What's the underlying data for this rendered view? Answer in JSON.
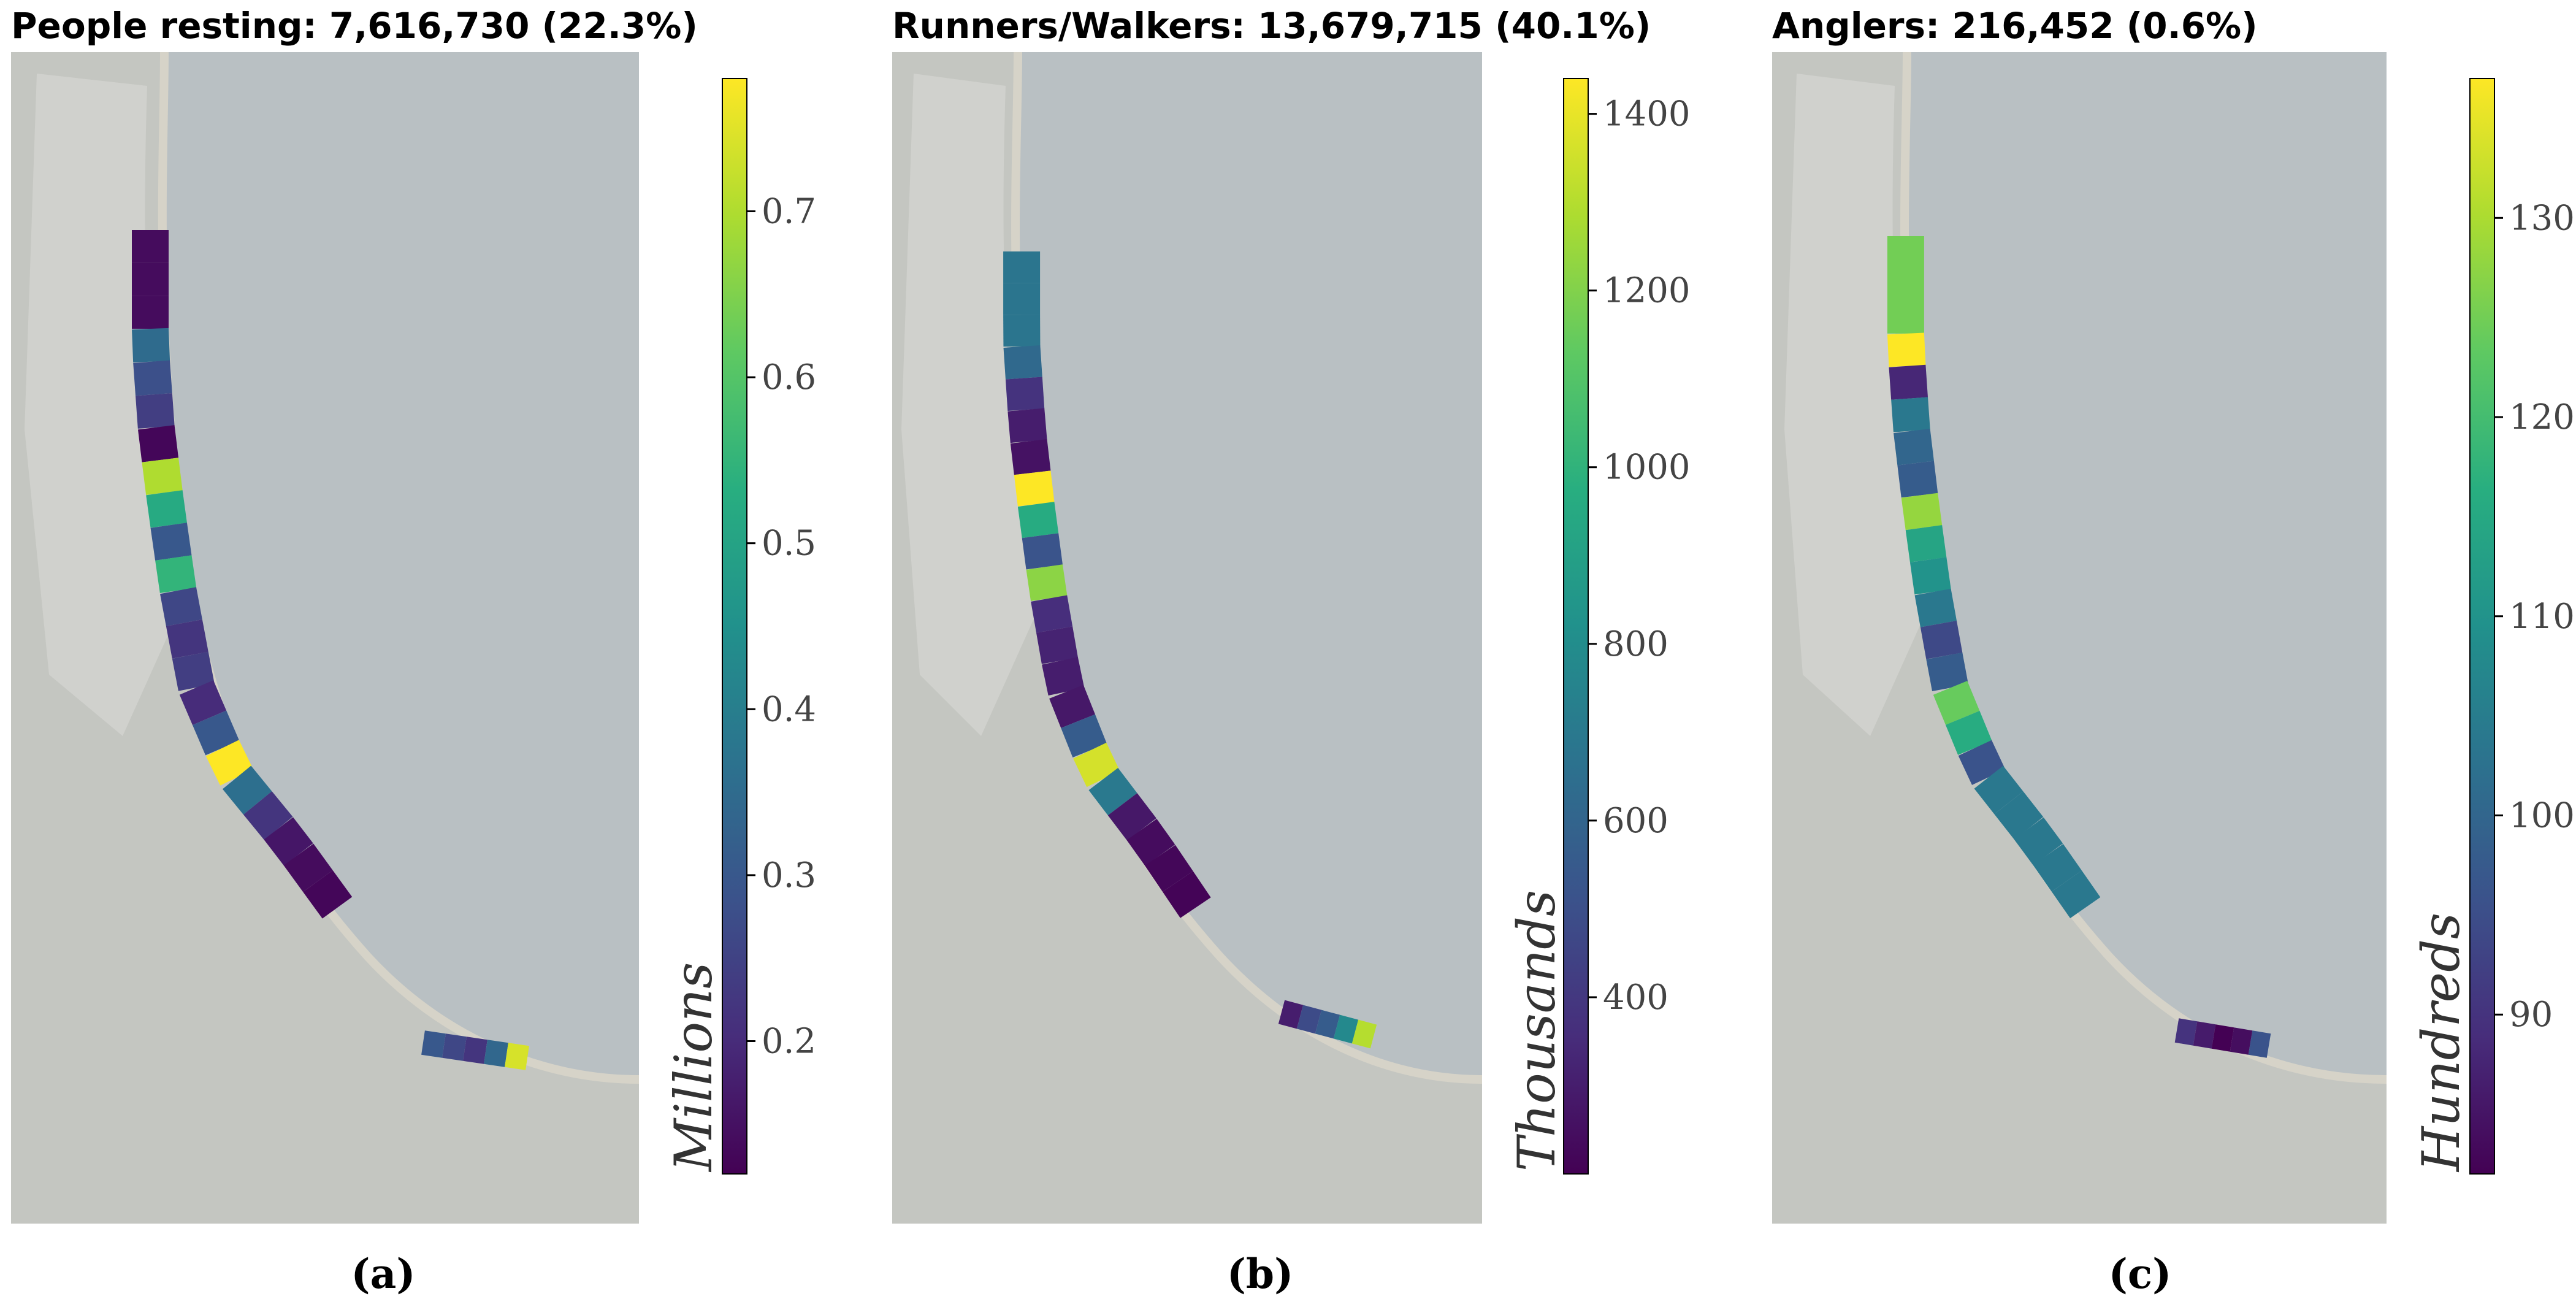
{
  "colormap": "viridis",
  "colors": {
    "water": "#b9c0c3",
    "land": "#c4c6c1",
    "urban": "#d3d3cf",
    "sand": "#d6d3c8",
    "frame": "#000000"
  },
  "panels": [
    {
      "id": "a",
      "title": "People resting: 7,616,730 (22.3%)",
      "subtitle": "(a)",
      "unit_label": "Millions",
      "colorbar": {
        "min": 0.12,
        "max": 0.78,
        "ticks": [
          0.2,
          0.3,
          0.4,
          0.5,
          0.6,
          0.7
        ]
      },
      "segments": [
        0.14,
        0.14,
        0.14,
        0.35,
        0.28,
        0.24,
        0.13,
        0.7,
        0.52,
        0.3,
        0.55,
        0.26,
        0.22,
        0.24,
        0.2,
        0.3,
        0.78,
        0.36,
        0.22,
        0.16,
        0.14,
        0.13
      ],
      "south_segments": [
        0.3,
        0.26,
        0.22,
        0.34,
        0.74
      ]
    },
    {
      "id": "b",
      "title": "Runners/Walkers: 13,679,715 (40.1%)",
      "subtitle": "(b)",
      "unit_label": "Thousands",
      "colorbar": {
        "min": 200,
        "max": 1440,
        "ticks": [
          400,
          600,
          800,
          1000,
          1200,
          1400
        ]
      },
      "segments": [
        680,
        680,
        680,
        620,
        380,
        300,
        260,
        1440,
        960,
        520,
        1220,
        360,
        320,
        300,
        280,
        560,
        1360,
        700,
        280,
        240,
        220,
        210
      ],
      "south_segments": [
        300,
        480,
        560,
        780,
        1300
      ]
    },
    {
      "id": "c",
      "title": "Anglers: 216,452 (0.6%)",
      "subtitle": "(c)",
      "unit_label": "Hundreds",
      "colorbar": {
        "min": 82,
        "max": 137,
        "ticks": [
          90,
          100,
          110,
          120,
          130
        ]
      },
      "segments": [
        125,
        125,
        125,
        137,
        88,
        104,
        100,
        98,
        128,
        114,
        110,
        104,
        94,
        98,
        124,
        116,
        96,
        104,
        104,
        104,
        104,
        104
      ],
      "south_segments": [
        90,
        86,
        82,
        84,
        96
      ]
    }
  ]
}
